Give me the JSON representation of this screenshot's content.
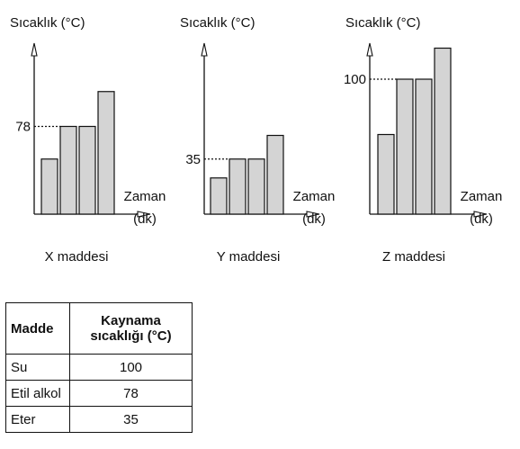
{
  "chart_data": [
    {
      "type": "bar",
      "ylabel": "Sıcaklık (°C)",
      "xlabel_line1": "Zaman",
      "xlabel_line2": "(dk)",
      "caption": "X maddesi",
      "reference_tick": 78,
      "values": [
        49,
        78,
        78,
        109
      ],
      "ylim": [
        0,
        140
      ]
    },
    {
      "type": "bar",
      "ylabel": "Sıcaklık (°C)",
      "xlabel_line1": "Zaman",
      "xlabel_line2": "(dk)",
      "caption": "Y maddesi",
      "reference_tick": 35,
      "values": [
        23,
        35,
        35,
        50
      ],
      "ylim": [
        0,
        140
      ]
    },
    {
      "type": "bar",
      "ylabel": "Sıcaklık (°C)",
      "xlabel_line1": "Zaman",
      "xlabel_line2": "(dk)",
      "caption": "Z maddesi",
      "reference_tick": 100,
      "values": [
        59,
        100,
        100,
        123
      ],
      "ylim": [
        0,
        135
      ]
    }
  ],
  "table": {
    "headers": [
      "Madde",
      "Kaynama sıcaklığı (°C)"
    ],
    "rows": [
      [
        "Su",
        "100"
      ],
      [
        "Etil alkol",
        "78"
      ],
      [
        "Eter",
        "35"
      ]
    ]
  }
}
